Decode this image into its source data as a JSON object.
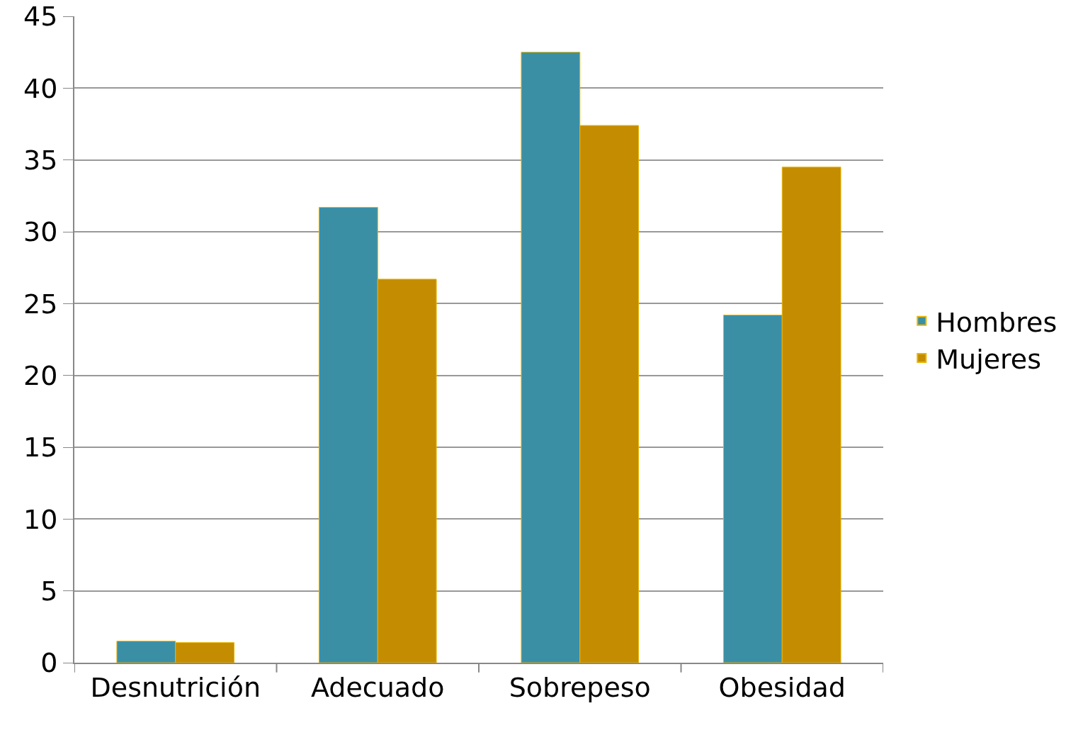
{
  "chart_data": {
    "type": "bar",
    "categories": [
      "Desnutrición",
      "Adecuado",
      "Sobrepeso",
      "Obesidad"
    ],
    "series": [
      {
        "name": "Hombres",
        "color": "#3a8fa5",
        "values": [
          1.5,
          31.7,
          42.5,
          24.2
        ]
      },
      {
        "name": "Mujeres",
        "color": "#c48c00",
        "values": [
          1.4,
          26.7,
          37.4,
          34.5
        ]
      }
    ],
    "ylim": [
      0,
      45
    ],
    "yticks": [
      0,
      5,
      10,
      15,
      20,
      25,
      30,
      35,
      40,
      45
    ],
    "grid": "y",
    "legend": "right"
  }
}
